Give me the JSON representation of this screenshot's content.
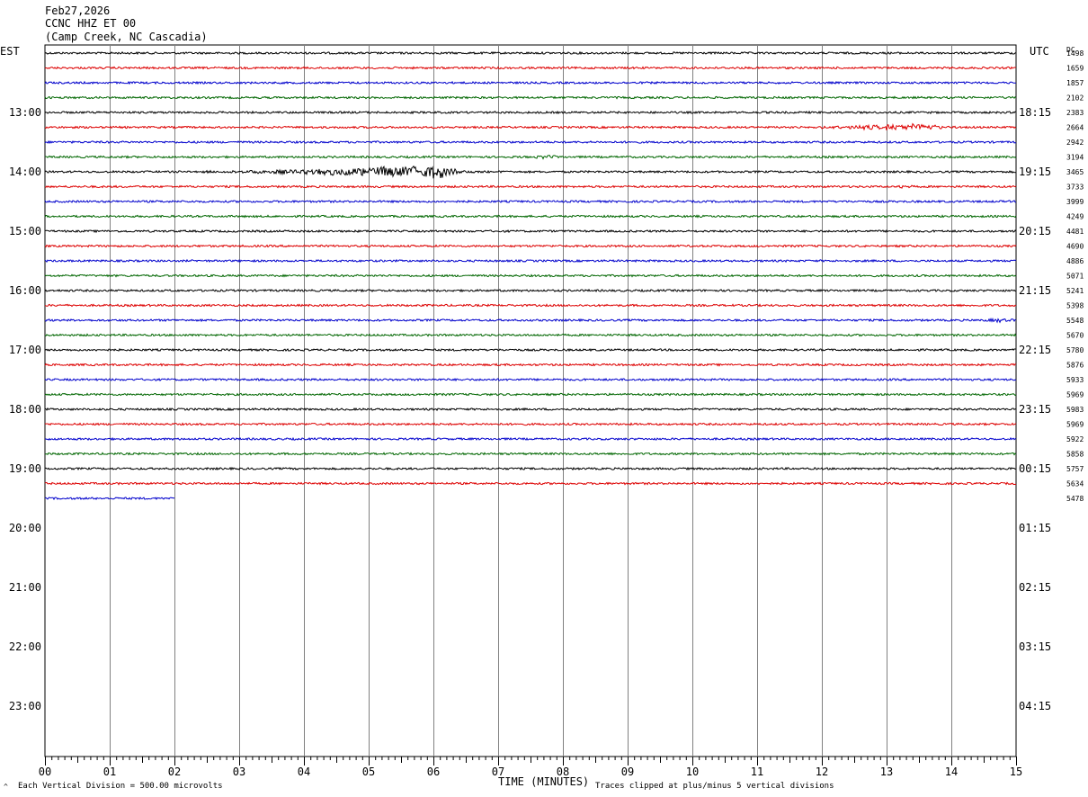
{
  "header": {
    "date": "Feb27,2026",
    "station": "CCNC HHZ ET 00",
    "location": "(Camp Creek, NC Cascadia)"
  },
  "left_axis_label": "EST",
  "right_axis_label": "UTC",
  "dc_label": "DC",
  "left_hour_labels": [
    "13:00",
    "14:00",
    "15:00",
    "16:00",
    "17:00",
    "18:00",
    "19:00",
    "20:00",
    "21:00",
    "22:00",
    "23:00"
  ],
  "right_hour_labels": [
    "18:15",
    "19:15",
    "20:15",
    "21:15",
    "22:15",
    "23:15",
    "00:15",
    "01:15",
    "02:15",
    "03:15",
    "04:15"
  ],
  "dc_values": [
    "1498",
    "1659",
    "1857",
    "2102",
    "2383",
    "2664",
    "2942",
    "3194",
    "3465",
    "3733",
    "3999",
    "4249",
    "4481",
    "4690",
    "4886",
    "5071",
    "5241",
    "5398",
    "5548",
    "5670",
    "5780",
    "5876",
    "5933",
    "5969",
    "5983",
    "5969",
    "5922",
    "5858",
    "5757",
    "5634",
    "5478"
  ],
  "x_tick_labels": [
    "00",
    "01",
    "02",
    "03",
    "04",
    "05",
    "06",
    "07",
    "08",
    "09",
    "10",
    "11",
    "12",
    "13",
    "14",
    "15"
  ],
  "footer": {
    "corner_mark": "^",
    "scale_note": "Each Vertical Division =  500.00 microvolts",
    "x_title": "TIME (MINUTES)",
    "clip_note": "Traces clipped at plus/minus 5 vertical divisions"
  },
  "colors": {
    "trace_cycle": [
      "#000000",
      "#dd0000",
      "#0000cc",
      "#006600"
    ],
    "grid": "#808080"
  },
  "chart_data": {
    "type": "line",
    "subtype": "helicorder",
    "x_unit": "minutes",
    "xlim": [
      0,
      15
    ],
    "rows_per_hour": 4,
    "minutes_per_row": 15,
    "first_row_time_est": "12:15",
    "total_rows": 46,
    "rows_with_data": 31,
    "last_row_end_minute": 2,
    "events": [
      {
        "row": 5,
        "start_min": 11.0,
        "end_min": 15.0,
        "peak_min": 13.6,
        "level": "moderate"
      },
      {
        "row": 7,
        "start_min": 7.4,
        "end_min": 8.0,
        "peak_min": 7.7,
        "level": "small"
      },
      {
        "row": 8,
        "start_min": 1.5,
        "end_min": 7.2,
        "peak_min": 6.1,
        "level": "large"
      },
      {
        "row": 9,
        "start_min": 13.1,
        "end_min": 13.4,
        "peak_min": 13.25,
        "level": "small"
      },
      {
        "row": 18,
        "start_min": 14.4,
        "end_min": 15.0,
        "peak_min": 14.7,
        "level": "small"
      }
    ]
  }
}
